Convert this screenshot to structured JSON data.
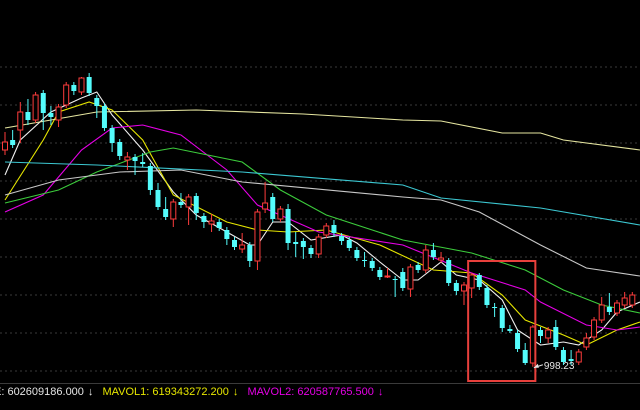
{
  "chart_data": {
    "type": "candlestick",
    "ylim": [
      982,
      1365
    ],
    "grid": true,
    "colors": {
      "up": "#ff3c3c",
      "down": "#54fcfc",
      "highlight_box": "#e8403c",
      "label": "#e6e6e6"
    },
    "candle_fields": [
      "open",
      "high",
      "low",
      "close"
    ],
    "candles": [
      [
        1215,
        1233,
        1210,
        1223
      ],
      [
        1225,
        1235,
        1217,
        1220
      ],
      [
        1235,
        1263,
        1222,
        1253
      ],
      [
        1253,
        1266,
        1240,
        1245
      ],
      [
        1245,
        1273,
        1242,
        1270
      ],
      [
        1272,
        1275,
        1235,
        1252
      ],
      [
        1252,
        1259,
        1240,
        1248
      ],
      [
        1245,
        1261,
        1238,
        1258
      ],
      [
        1260,
        1283,
        1257,
        1280
      ],
      [
        1280,
        1283,
        1270,
        1274
      ],
      [
        1273,
        1288,
        1270,
        1287
      ],
      [
        1288,
        1292,
        1269,
        1272
      ],
      [
        1267,
        1270,
        1247,
        1259
      ],
      [
        1259,
        1262,
        1234,
        1237
      ],
      [
        1237,
        1240,
        1213,
        1222
      ],
      [
        1223,
        1226,
        1205,
        1209
      ],
      [
        1205,
        1213,
        1195,
        1208
      ],
      [
        1208,
        1211,
        1190,
        1204
      ],
      [
        1203,
        1212,
        1198,
        1201
      ],
      [
        1199,
        1202,
        1170,
        1175
      ],
      [
        1175,
        1182,
        1155,
        1158
      ],
      [
        1156,
        1168,
        1145,
        1148
      ],
      [
        1146,
        1166,
        1138,
        1163
      ],
      [
        1163,
        1172,
        1157,
        1160
      ],
      [
        1158,
        1171,
        1140,
        1168
      ],
      [
        1169,
        1172,
        1145,
        1152
      ],
      [
        1149,
        1152,
        1137,
        1143
      ],
      [
        1141,
        1151,
        1133,
        1144
      ],
      [
        1143,
        1146,
        1134,
        1137
      ],
      [
        1135,
        1138,
        1120,
        1126
      ],
      [
        1125,
        1128,
        1115,
        1118
      ],
      [
        1116,
        1132,
        1112,
        1120
      ],
      [
        1120,
        1123,
        1098,
        1104
      ],
      [
        1104,
        1156,
        1095,
        1153
      ],
      [
        1156,
        1183,
        1152,
        1162
      ],
      [
        1168,
        1172,
        1143,
        1146
      ],
      [
        1146,
        1159,
        1143,
        1156
      ],
      [
        1156,
        1161,
        1115,
        1122
      ],
      [
        1123,
        1133,
        1108,
        1121
      ],
      [
        1124,
        1127,
        1106,
        1118
      ],
      [
        1117,
        1120,
        1107,
        1111
      ],
      [
        1111,
        1131,
        1107,
        1128
      ],
      [
        1130,
        1142,
        1127,
        1139
      ],
      [
        1140,
        1145,
        1128,
        1132
      ],
      [
        1129,
        1132,
        1120,
        1124
      ],
      [
        1125,
        1128,
        1114,
        1117
      ],
      [
        1115,
        1118,
        1104,
        1107
      ],
      [
        1105,
        1113,
        1098,
        1104
      ],
      [
        1104,
        1107,
        1094,
        1097
      ],
      [
        1095,
        1098,
        1085,
        1088
      ],
      [
        1088,
        1097,
        1087,
        1089
      ],
      [
        1086,
        1089,
        1068,
        1085
      ],
      [
        1093,
        1097,
        1074,
        1077
      ],
      [
        1076,
        1101,
        1068,
        1098
      ],
      [
        1100,
        1103,
        1092,
        1095
      ],
      [
        1095,
        1120,
        1092,
        1115
      ],
      [
        1115,
        1122,
        1105,
        1108
      ],
      [
        1105,
        1113,
        1102,
        1107
      ],
      [
        1105,
        1107,
        1079,
        1082
      ],
      [
        1082,
        1085,
        1070,
        1074
      ],
      [
        1074,
        1083,
        1060,
        1080
      ],
      [
        1077,
        1092,
        1067,
        1090
      ],
      [
        1090,
        1092,
        1075,
        1078
      ],
      [
        1077,
        1080,
        1057,
        1060
      ],
      [
        1058,
        1062,
        1048,
        1057
      ],
      [
        1057,
        1060,
        1033,
        1037
      ],
      [
        1036,
        1040,
        1032,
        1034
      ],
      [
        1032,
        1035,
        1013,
        1016
      ],
      [
        1015,
        1022,
        1000,
        1002
      ],
      [
        1002,
        1040,
        998.23,
        1038
      ],
      [
        1035,
        1038,
        1022,
        1029
      ],
      [
        1027,
        1038,
        1022,
        1035
      ],
      [
        1038,
        1045,
        1015,
        1018
      ],
      [
        1015,
        1018,
        1000,
        1003
      ],
      [
        1006,
        1015,
        1000,
        1004
      ],
      [
        1003,
        1016,
        1000,
        1013
      ],
      [
        1018,
        1032,
        1015,
        1027
      ],
      [
        1028,
        1048,
        1025,
        1045
      ],
      [
        1045,
        1068,
        1042,
        1060
      ],
      [
        1058,
        1072,
        1050,
        1053
      ],
      [
        1052,
        1065,
        1049,
        1062
      ],
      [
        1060,
        1073,
        1057,
        1067
      ],
      [
        1060,
        1073,
        1057,
        1070
      ]
    ],
    "moving_averages": [
      {
        "color": "#f0f0f0",
        "points": [
          [
            0,
            1190
          ],
          [
            2,
            1225
          ],
          [
            6,
            1253
          ],
          [
            10,
            1267
          ],
          [
            12,
            1273
          ],
          [
            14,
            1250
          ],
          [
            18,
            1215
          ],
          [
            22,
            1173
          ],
          [
            25,
            1150
          ],
          [
            29,
            1133
          ],
          [
            32,
            1120
          ],
          [
            33,
            1120
          ],
          [
            35,
            1143
          ],
          [
            37,
            1143
          ],
          [
            40,
            1125
          ],
          [
            44,
            1130
          ],
          [
            46,
            1122
          ],
          [
            49,
            1103
          ],
          [
            52,
            1085
          ],
          [
            54,
            1085
          ],
          [
            57,
            1103
          ],
          [
            59,
            1090
          ],
          [
            62,
            1085
          ],
          [
            65,
            1065
          ],
          [
            67,
            1035
          ],
          [
            70,
            1020
          ],
          [
            73,
            1023
          ],
          [
            75,
            1020
          ],
          [
            78,
            1035
          ],
          [
            80,
            1053
          ],
          [
            83,
            1063
          ]
        ]
      },
      {
        "color": "#e6e600",
        "points": [
          [
            0,
            1165
          ],
          [
            5,
            1225
          ],
          [
            7,
            1253
          ],
          [
            11,
            1263
          ],
          [
            14,
            1255
          ],
          [
            18,
            1225
          ],
          [
            22,
            1170
          ],
          [
            29,
            1143
          ],
          [
            33,
            1135
          ],
          [
            37,
            1133
          ],
          [
            42,
            1135
          ],
          [
            49,
            1120
          ],
          [
            56,
            1095
          ],
          [
            61,
            1092
          ],
          [
            65,
            1070
          ],
          [
            68,
            1045
          ],
          [
            73,
            1030
          ],
          [
            76,
            1020
          ],
          [
            80,
            1035
          ],
          [
            83,
            1043
          ]
        ]
      },
      {
        "color": "#e600e6",
        "points": [
          [
            0,
            1153
          ],
          [
            5,
            1170
          ],
          [
            10,
            1215
          ],
          [
            14,
            1237
          ],
          [
            18,
            1240
          ],
          [
            23,
            1230
          ],
          [
            29,
            1195
          ],
          [
            33,
            1160
          ],
          [
            41,
            1133
          ],
          [
            52,
            1120
          ],
          [
            61,
            1092
          ],
          [
            68,
            1075
          ],
          [
            70,
            1063
          ],
          [
            76,
            1040
          ],
          [
            80,
            1035
          ],
          [
            83,
            1038
          ]
        ]
      },
      {
        "color": "#3ccc3c",
        "points": [
          [
            0,
            1162
          ],
          [
            7,
            1175
          ],
          [
            12,
            1193
          ],
          [
            19,
            1213
          ],
          [
            22,
            1217
          ],
          [
            31,
            1203
          ],
          [
            36,
            1175
          ],
          [
            42,
            1150
          ],
          [
            52,
            1125
          ],
          [
            61,
            1112
          ],
          [
            68,
            1095
          ],
          [
            73,
            1075
          ],
          [
            78,
            1060
          ],
          [
            83,
            1052
          ]
        ]
      },
      {
        "color": "#c8c8c8",
        "points": [
          [
            0,
            1170
          ],
          [
            7,
            1185
          ],
          [
            15,
            1193
          ],
          [
            23,
            1195
          ],
          [
            31,
            1183
          ],
          [
            52,
            1168
          ],
          [
            57,
            1165
          ],
          [
            62,
            1153
          ],
          [
            70,
            1120
          ],
          [
            76,
            1097
          ],
          [
            83,
            1089
          ]
        ]
      },
      {
        "color": "#3cc8d2",
        "points": [
          [
            0,
            1203
          ],
          [
            12,
            1200
          ],
          [
            31,
            1193
          ],
          [
            52,
            1180
          ],
          [
            57,
            1167
          ],
          [
            70,
            1157
          ],
          [
            83,
            1140
          ]
        ]
      },
      {
        "color": "#e6e6a0",
        "points": [
          [
            0,
            1237
          ],
          [
            12,
            1253
          ],
          [
            25,
            1255
          ],
          [
            39,
            1251
          ],
          [
            52,
            1245
          ],
          [
            57,
            1244
          ],
          [
            65,
            1232
          ],
          [
            70,
            1232
          ],
          [
            73,
            1225
          ],
          [
            83,
            1215
          ]
        ]
      }
    ],
    "highlight_box": {
      "from_index": 61,
      "to_index": 69,
      "price_high": 1104,
      "price_low": 984
    },
    "annotations": [
      {
        "index": 69,
        "price": 998.23,
        "text": "998.23"
      }
    ]
  },
  "volume_bar": {
    "vol_label": "E: 602609186.000",
    "vol_arrow": "↓",
    "mavol1_label": "MAVOL1: 619343272.200",
    "mavol1_arrow": "↓",
    "mavol2_label": "MAVOL2: 620587765.500",
    "mavol2_arrow": "↓"
  }
}
